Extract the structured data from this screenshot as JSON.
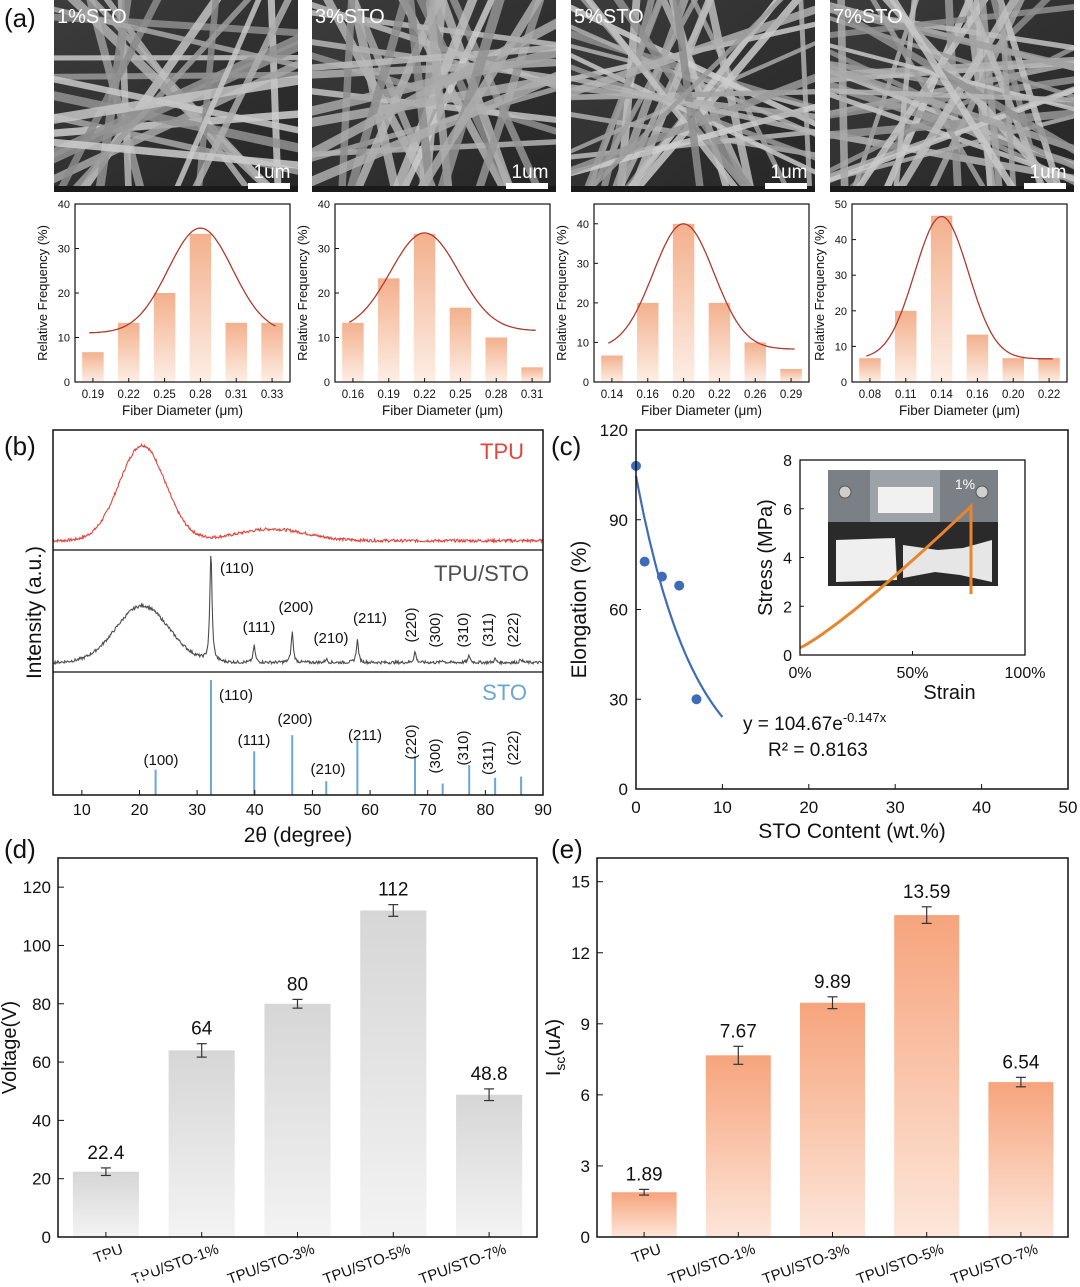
{
  "panel_labels": {
    "a": "(a)",
    "b": "(b)",
    "c": "(c)",
    "d": "(d)",
    "e": "(e)"
  },
  "sem_images": [
    {
      "label": "1%STO",
      "scale": "1um"
    },
    {
      "label": "3%STO",
      "scale": "1um"
    },
    {
      "label": "5%STO",
      "scale": "1um"
    },
    {
      "label": "7%STO",
      "scale": "1um"
    }
  ],
  "watermark": {
    "icon": "wechat-logo-icon"
  },
  "colors": {
    "hist_bar": "#f7c7a8",
    "hist_curve": "#b03a2e",
    "tpu": "#e0453c",
    "tpu_sto": "#4d4d4d",
    "sto": "#6aa6d6",
    "scatter": "#3f6cb8",
    "stress": "#e8862f",
    "voltage_bar": "#dcdcdc",
    "current_bar": "#f6b08c"
  },
  "chart_data": [
    {
      "id": "hist-1",
      "type": "bar",
      "title": "1%STO",
      "xlabel": "Fiber Diameter (μm)",
      "ylabel": "Relative Frequency (%)",
      "categories": [
        "0.19",
        "0.22",
        "0.25",
        "0.28",
        "0.31",
        "0.33"
      ],
      "values": [
        6.7,
        13.3,
        20,
        33.3,
        13.3,
        13.3
      ],
      "ylim": [
        0,
        40
      ],
      "yticks": [
        "0",
        "10",
        "20",
        "30",
        "40"
      ],
      "fit": {
        "type": "gaussian",
        "baseline": 11,
        "peak": 34.6,
        "center": 3.0,
        "width": 0.9
      }
    },
    {
      "id": "hist-2",
      "type": "bar",
      "title": "3%STO",
      "xlabel": "Fiber Diameter (μm)",
      "ylabel": "Relative Frequency (%)",
      "categories": [
        "0.16",
        "0.19",
        "0.22",
        "0.25",
        "0.28",
        "0.31"
      ],
      "values": [
        13.3,
        23.3,
        33.3,
        16.7,
        10,
        3.3
      ],
      "ylim": [
        0,
        40
      ],
      "yticks": [
        "0",
        "10",
        "20",
        "30",
        "40"
      ],
      "fit": {
        "type": "gaussian",
        "baseline": 11.5,
        "peak": 33.5,
        "center": 2.0,
        "width": 0.95
      }
    },
    {
      "id": "hist-3",
      "type": "bar",
      "title": "5%STO",
      "xlabel": "Fiber Diameter (μm)",
      "ylabel": "Relative Frequency (%)",
      "categories": [
        "0.14",
        "0.16",
        "0.20",
        "0.22",
        "0.26",
        "0.29"
      ],
      "values": [
        6.7,
        20,
        40,
        20,
        10,
        3.3
      ],
      "ylim": [
        0,
        45
      ],
      "yticks": [
        "0",
        "10",
        "20",
        "30",
        "40"
      ],
      "fit": {
        "type": "gaussian",
        "baseline": 8.3,
        "peak": 40,
        "center": 2.0,
        "width": 0.85
      }
    },
    {
      "id": "hist-4",
      "type": "bar",
      "title": "7%STO",
      "xlabel": "Fiber Diameter (μm)",
      "ylabel": "Relative Frequency (%)",
      "categories": [
        "0.08",
        "0.11",
        "0.14",
        "0.16",
        "0.20",
        "0.22"
      ],
      "values": [
        6.7,
        20,
        46.7,
        13.3,
        6.7,
        6.7
      ],
      "ylim": [
        0,
        50
      ],
      "yticks": [
        "0",
        "10",
        "20",
        "30",
        "40",
        "50"
      ],
      "fit": {
        "type": "gaussian",
        "baseline": 6.5,
        "peak": 46.5,
        "center": 2.0,
        "width": 0.75
      }
    },
    {
      "id": "xrd",
      "type": "line",
      "xlabel": "2θ (degree)",
      "ylabel": "Intensity (a.u.)",
      "xlim": [
        5,
        90
      ],
      "xticks": [
        "10",
        "20",
        "30",
        "40",
        "50",
        "60",
        "70",
        "80",
        "90"
      ],
      "series": [
        {
          "name": "TPU",
          "humps": [
            {
              "center": 20.5,
              "height": 0.82,
              "width": 4.0
            },
            {
              "center": 43,
              "height": 0.1,
              "width": 6
            }
          ],
          "baseline": 0.08
        },
        {
          "name": "TPU/STO",
          "humps": [
            {
              "center": 20.5,
              "height": 0.48,
              "width": 4.6
            }
          ],
          "peaks": [
            {
              "pos": 32.4,
              "height": 0.92,
              "label": "(110)"
            },
            {
              "pos": 39.9,
              "height": 0.14,
              "label": "(111)"
            },
            {
              "pos": 46.5,
              "height": 0.26,
              "label": "(200)"
            },
            {
              "pos": 52.4,
              "height": 0.03,
              "label": "(210)"
            },
            {
              "pos": 57.8,
              "height": 0.19,
              "label": "(211)"
            },
            {
              "pos": 67.8,
              "height": 0.09,
              "label": "(220)"
            },
            {
              "pos": 72.6,
              "height": 0.02,
              "label": "(300)"
            },
            {
              "pos": 77.2,
              "height": 0.06,
              "label": "(310)"
            },
            {
              "pos": 81.7,
              "height": 0.03,
              "label": "(311)"
            },
            {
              "pos": 86.2,
              "height": 0.03,
              "label": "(222)"
            }
          ],
          "baseline": 0.08
        },
        {
          "name": "STO",
          "sticks": [
            {
              "pos": 22.8,
              "height": 0.22,
              "label": "(100)"
            },
            {
              "pos": 32.4,
              "height": 1.0,
              "label": "(110)"
            },
            {
              "pos": 39.9,
              "height": 0.38,
              "label": "(111)"
            },
            {
              "pos": 46.5,
              "height": 0.52,
              "label": "(200)"
            },
            {
              "pos": 52.4,
              "height": 0.12,
              "label": "(210)"
            },
            {
              "pos": 57.8,
              "height": 0.48,
              "label": "(211)"
            },
            {
              "pos": 67.8,
              "height": 0.34,
              "label": "(220)"
            },
            {
              "pos": 72.6,
              "height": 0.1,
              "label": "(300)"
            },
            {
              "pos": 77.2,
              "height": 0.26,
              "label": "(310)"
            },
            {
              "pos": 81.7,
              "height": 0.15,
              "label": "(311)"
            },
            {
              "pos": 86.2,
              "height": 0.16,
              "label": "(222)"
            }
          ]
        }
      ]
    },
    {
      "id": "elongation",
      "type": "scatter",
      "xlabel": "STO Content (wt.%)",
      "ylabel": "Elongation (%)",
      "xlim": [
        0,
        50
      ],
      "ylim": [
        0,
        120
      ],
      "xticks": [
        "0",
        "10",
        "20",
        "30",
        "40",
        "50"
      ],
      "yticks": [
        "0",
        "30",
        "60",
        "90",
        "120"
      ],
      "points": [
        {
          "x": 0,
          "y": 108
        },
        {
          "x": 1,
          "y": 76
        },
        {
          "x": 3,
          "y": 71
        },
        {
          "x": 5,
          "y": 68
        },
        {
          "x": 7,
          "y": 30
        }
      ],
      "fit": {
        "a": 104.67,
        "b": -0.147,
        "x_range": [
          0,
          10
        ]
      },
      "equation": "y = 104.67e",
      "equation_exp": "-0.147x",
      "r2": "R² = 0.8163",
      "inset": {
        "type": "line",
        "xlabel": "Strain",
        "ylabel": "Stress (MPa)",
        "xlim": [
          0,
          100
        ],
        "ylim": [
          0,
          8
        ],
        "xticks": [
          "0%",
          "50%",
          "100%"
        ],
        "yticks": [
          "0",
          "2",
          "4",
          "6",
          "8"
        ],
        "photo_label": "1%",
        "curve": {
          "end_strain": 76,
          "end_stress": 6.1,
          "start_stress": 0.3,
          "drop_to": 2.5
        }
      }
    },
    {
      "id": "voltage",
      "type": "bar",
      "ylabel": "Voltage(V)",
      "categories": [
        "TPU",
        "TPU/STO-1%",
        "TPU/STO-3%",
        "TPU/STO-5%",
        "TPU/STO-7%"
      ],
      "values": [
        22.4,
        64,
        80,
        112,
        48.8
      ],
      "value_labels": [
        "22.4",
        "64",
        "80",
        "112",
        "48.8"
      ],
      "errors": [
        1.3,
        2.3,
        1.5,
        2.0,
        2.0
      ],
      "ylim": [
        0,
        130
      ],
      "yticks": [
        "0",
        "20",
        "40",
        "60",
        "80",
        "100",
        "120"
      ]
    },
    {
      "id": "current",
      "type": "bar",
      "ylabel": "I",
      "ylabel_sub": "sc",
      "ylabel_tail": "(uA)",
      "categories": [
        "TPU",
        "TPU/STO-1%",
        "TPU/STO-3%",
        "TPU/STO-5%",
        "TPU/STO-7%"
      ],
      "values": [
        1.89,
        7.67,
        9.89,
        13.59,
        6.54
      ],
      "value_labels": [
        "1.89",
        "7.67",
        "9.89",
        "13.59",
        "6.54"
      ],
      "errors": [
        0.12,
        0.38,
        0.25,
        0.35,
        0.2
      ],
      "ylim": [
        0,
        16
      ],
      "yticks": [
        "0",
        "3",
        "6",
        "9",
        "12",
        "15"
      ]
    }
  ]
}
